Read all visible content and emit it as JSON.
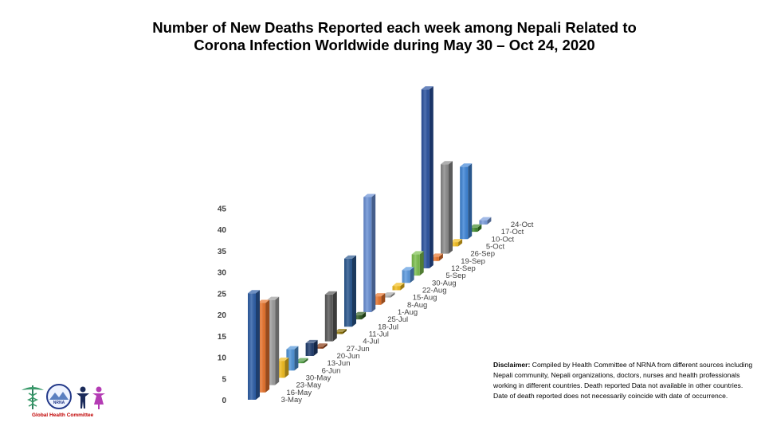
{
  "chart_data": {
    "type": "bar",
    "title_lines": [
      "Number of New Deaths Reported each week among Nepali Related to",
      "Corona Infection Worldwide during May 30 – Oct 24, 2020"
    ],
    "categories": [
      "3-May",
      "16-May",
      "23-May",
      "30-May",
      "6-Jun",
      "13-Jun",
      "20-Jun",
      "27-Jun",
      "4-Jul",
      "11-Jul",
      "18-Jul",
      "25-Jul",
      "1-Aug",
      "8-Aug",
      "15-Aug",
      "22-Aug",
      "30-Aug",
      "5-Sep",
      "12-Sep",
      "19-Sep",
      "26-Sep",
      "5-Oct",
      "10-Oct",
      "17-Oct",
      "24-Oct"
    ],
    "values": [
      25,
      21,
      20,
      4,
      5,
      0,
      3,
      0,
      11,
      0,
      16,
      1,
      27,
      2,
      0,
      1,
      3,
      5,
      42,
      1,
      21,
      1,
      17,
      1,
      1
    ],
    "colors": [
      "#2e5fa8",
      "#e8742c",
      "#9e9e9e",
      "#f2bd1d",
      "#4f94d8",
      "#4a9a3c",
      "#1f3c6e",
      "#8a3a12",
      "#5a5a5a",
      "#8a6f00",
      "#2a5890",
      "#2f5c22",
      "#6a91d6",
      "#e8742c",
      "#a8a8a8",
      "#f2bd1d",
      "#5b9ae0",
      "#7cc04e",
      "#2a52a0",
      "#e8742c",
      "#8c8c8c",
      "#f2bd1d",
      "#3f86d8",
      "#3f8a2c",
      "#7a9cdc"
    ],
    "y_ticks": [
      0,
      5,
      10,
      15,
      20,
      25,
      30,
      35,
      40,
      45
    ],
    "ylim": [
      0,
      45
    ],
    "grid": false,
    "legend": "none"
  },
  "disclaimer": {
    "label": "Disclaimer:",
    "text": " Compiled by Health Committee  of NRNA from different sources including Nepali community, Nepali organizations, doctors, nurses and health professionals working in different countries. Death  reported Data not available in other countries. Date of death reported does not necessarily coincide with date of occurrence."
  },
  "logo": {
    "badge_text": "NRNA",
    "caption": "Global Health Committee"
  }
}
